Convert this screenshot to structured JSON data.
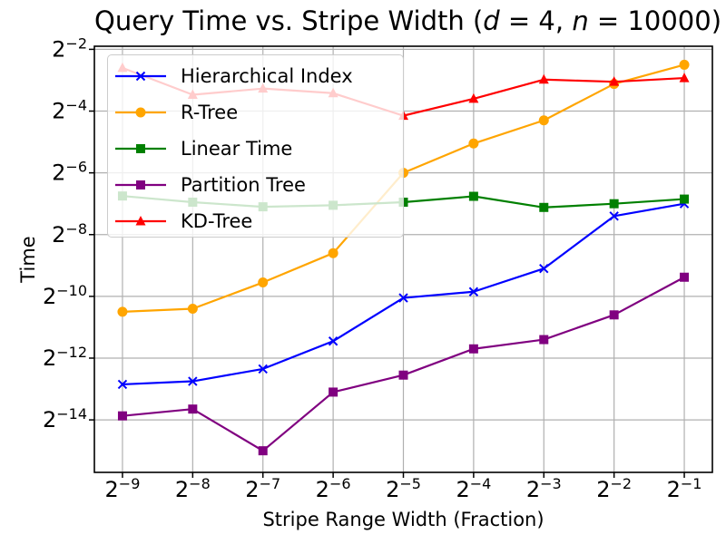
{
  "title": {
    "prefix": "Query Time vs. Stripe Width (",
    "var1": "d",
    "seg1": " = 4, ",
    "var2": "n",
    "seg2": " = 10000)"
  },
  "chart_data": {
    "type": "line",
    "title": "Query Time vs. Stripe Width (d = 4, n = 10000)",
    "xlabel": "Stripe Range Width (Fraction)",
    "ylabel": "Time",
    "x_scale": "log2",
    "y_scale": "log2",
    "grid": true,
    "legend_position": "upper left",
    "x_exponents": [
      -9,
      -8,
      -7,
      -6,
      -5,
      -4,
      -3,
      -2,
      -1
    ],
    "x_tick_exponents": [
      -9,
      -8,
      -7,
      -6,
      -5,
      -4,
      -3,
      -2,
      -1
    ],
    "y_tick_exponents": [
      -2,
      -4,
      -6,
      -8,
      -10,
      -12,
      -14
    ],
    "xlim_exponents": [
      -9.4,
      -0.6
    ],
    "ylim_exponents": [
      -15.7,
      -1.9
    ],
    "tick_label_format": "2^exponent",
    "series": [
      {
        "name": "Hierarchical Index",
        "color": "#0000ff",
        "marker": "x",
        "y_exponents": [
          -12.85,
          -12.75,
          -12.35,
          -11.45,
          -10.05,
          -9.85,
          -9.1,
          -7.4,
          -7.0
        ]
      },
      {
        "name": "R-Tree",
        "color": "#ffa500",
        "marker": "circle",
        "y_exponents": [
          -10.5,
          -10.4,
          -9.55,
          -8.6,
          -6.0,
          -5.05,
          -4.3,
          -3.12,
          -2.5
        ]
      },
      {
        "name": "Linear Time",
        "color": "#008000",
        "marker": "square",
        "y_exponents": [
          -6.75,
          -6.95,
          -7.1,
          -7.05,
          -6.95,
          -6.76,
          -7.12,
          -7.0,
          -6.85
        ]
      },
      {
        "name": "Partition Tree",
        "color": "#800080",
        "marker": "square",
        "y_exponents": [
          -13.87,
          -13.65,
          -15.0,
          -13.1,
          -12.55,
          -11.7,
          -11.4,
          -10.6,
          -9.38
        ]
      },
      {
        "name": "KD-Tree",
        "color": "#ff0000",
        "marker": "triangle",
        "y_exponents": [
          -2.6,
          -3.47,
          -3.27,
          -3.42,
          -4.15,
          -3.6,
          -2.98,
          -3.05,
          -2.93
        ]
      }
    ]
  },
  "colors": {
    "grid": "#b0b0b0",
    "spine": "#000000",
    "tick": "#000000",
    "legend_border": "#cccccc",
    "legend_background": "rgba(255,255,255,0.8)"
  }
}
